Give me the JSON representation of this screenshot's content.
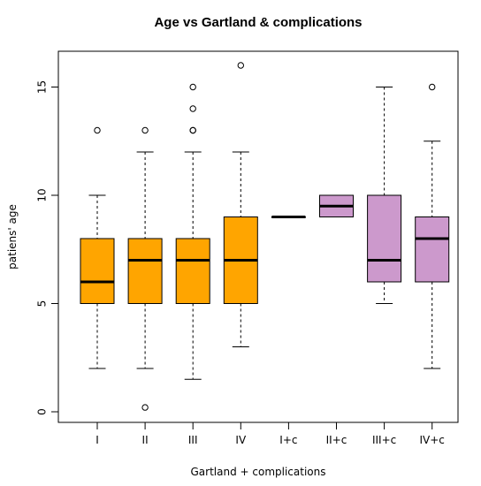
{
  "chart_data": {
    "type": "boxplot",
    "title": "Age vs Gartland & complications",
    "xlabel": "Gartland + complications",
    "ylabel": "patiens' age",
    "ylim": [
      0,
      16
    ],
    "y_ticks": [
      0,
      5,
      10,
      15
    ],
    "grid": false,
    "legend": "none",
    "categories": [
      "I",
      "II",
      "III",
      "IV",
      "I+c",
      "II+c",
      "III+c",
      "IV+c"
    ],
    "boxes": [
      {
        "label": "I",
        "min": 2,
        "q1": 5,
        "median": 6,
        "q3": 8,
        "max": 10,
        "outliers": [
          13
        ],
        "color": "#FFA500"
      },
      {
        "label": "II",
        "min": 2,
        "q1": 5,
        "median": 7,
        "q3": 8,
        "max": 12,
        "outliers": [
          13,
          0.2
        ],
        "color": "#FFA500"
      },
      {
        "label": "III",
        "min": 1.5,
        "q1": 5,
        "median": 7,
        "q3": 8,
        "max": 12,
        "outliers": [
          13,
          13,
          14,
          15
        ],
        "color": "#FFA500"
      },
      {
        "label": "IV",
        "min": 3,
        "q1": 5,
        "median": 7,
        "q3": 9,
        "max": 12,
        "outliers": [
          16
        ],
        "color": "#FFA500"
      },
      {
        "label": "I+c",
        "min": 9,
        "q1": 9,
        "median": 9,
        "q3": 9,
        "max": 9,
        "outliers": [],
        "color": "#FFA500"
      },
      {
        "label": "II+c",
        "min": 9,
        "q1": 9,
        "median": 9.5,
        "q3": 10,
        "max": 10,
        "outliers": [],
        "color": "#CC99CC"
      },
      {
        "label": "III+c",
        "min": 5,
        "q1": 6,
        "median": 7,
        "q3": 10,
        "max": 15,
        "outliers": [],
        "color": "#CC99CC"
      },
      {
        "label": "IV+c",
        "min": 2,
        "q1": 6,
        "median": 8,
        "q3": 9,
        "max": 12.5,
        "outliers": [
          15
        ],
        "color": "#CC99CC"
      }
    ]
  }
}
